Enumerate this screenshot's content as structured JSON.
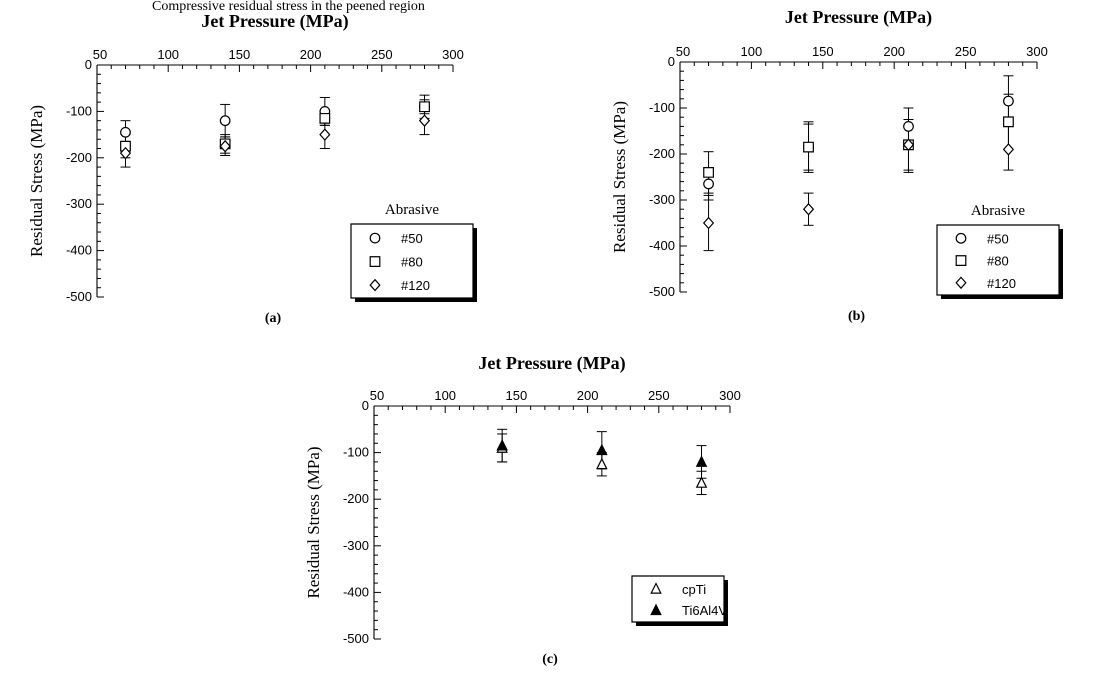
{
  "top_text": "Compressive residual stress in the peened region",
  "chart_data": [
    {
      "id": "a",
      "type": "scatter",
      "caption": "(a)",
      "xlabel": "Jet Pressure (MPa)",
      "ylabel": "Residual Stress (MPa)",
      "xlim": [
        50,
        300
      ],
      "ylim": [
        -500,
        0
      ],
      "xticks": [
        50,
        100,
        150,
        200,
        250,
        300
      ],
      "yticks": [
        0,
        -100,
        -200,
        -300,
        -400,
        -500
      ],
      "legend_title": "Abrasive",
      "legend_position": "bottom-right",
      "series": [
        {
          "name": "#50",
          "marker": "circle",
          "x": [
            70,
            140,
            210,
            280
          ],
          "y": [
            -145,
            -120,
            -100,
            -90
          ],
          "err": [
            [
              -120,
              -170
            ],
            [
              -85,
              -155
            ],
            [
              -70,
              -130
            ],
            [
              -65,
              -115
            ]
          ]
        },
        {
          "name": "#80",
          "marker": "square",
          "x": [
            70,
            140,
            210,
            280
          ],
          "y": [
            -175,
            -170,
            -115,
            -90
          ],
          "err": [
            [
              -150,
              -200
            ],
            [
              -150,
              -190
            ],
            [
              -100,
              -130
            ],
            [
              -75,
              -105
            ]
          ]
        },
        {
          "name": "#120",
          "marker": "diamond",
          "x": [
            70,
            140,
            210,
            280
          ],
          "y": [
            -190,
            -175,
            -150,
            -120
          ],
          "err": [
            [
              -165,
              -220
            ],
            [
              -155,
              -195
            ],
            [
              -120,
              -180
            ],
            [
              -90,
              -150
            ]
          ]
        }
      ]
    },
    {
      "id": "b",
      "type": "scatter",
      "caption": "(b)",
      "xlabel": "Jet Pressure (MPa)",
      "ylabel": "Residual Stress (MPa)",
      "xlim": [
        50,
        300
      ],
      "ylim": [
        -500,
        0
      ],
      "xticks": [
        50,
        100,
        150,
        200,
        250,
        300
      ],
      "yticks": [
        0,
        -100,
        -200,
        -300,
        -400,
        -500
      ],
      "legend_title": "Abrasive",
      "legend_position": "bottom-right",
      "series": [
        {
          "name": "#50",
          "marker": "circle",
          "x": [
            70,
            140,
            210,
            280
          ],
          "y": [
            -265,
            -185,
            -140,
            -85
          ],
          "err": [
            [
              -230,
              -300
            ],
            [
              -130,
              -240
            ],
            [
              -100,
              -180
            ],
            [
              -30,
              -140
            ]
          ]
        },
        {
          "name": "#80",
          "marker": "square",
          "x": [
            70,
            140,
            210,
            280
          ],
          "y": [
            -240,
            -185,
            -180,
            -130
          ],
          "err": [
            [
              -195,
              -285
            ],
            [
              -135,
              -235
            ],
            [
              -125,
              -235
            ],
            [
              -70,
              -190
            ]
          ]
        },
        {
          "name": "#120",
          "marker": "diamond",
          "x": [
            70,
            140,
            210,
            280
          ],
          "y": [
            -350,
            -320,
            -180,
            -190
          ],
          "err": [
            [
              -290,
              -410
            ],
            [
              -285,
              -355
            ],
            [
              -125,
              -240
            ],
            [
              -140,
              -235
            ]
          ]
        }
      ]
    },
    {
      "id": "c",
      "type": "scatter",
      "caption": "(c)",
      "xlabel": "Jet Pressure (MPa)",
      "ylabel": "Residual Stress (MPa)",
      "xlim": [
        50,
        300
      ],
      "ylim": [
        -500,
        0
      ],
      "xticks": [
        50,
        100,
        150,
        200,
        250,
        300
      ],
      "yticks": [
        0,
        -100,
        -200,
        -300,
        -400,
        -500
      ],
      "legend_title": "",
      "legend_position": "bottom-right",
      "series": [
        {
          "name": "cpTi",
          "marker": "triangle-open",
          "x": [
            140,
            210,
            280
          ],
          "y": [
            -90,
            -125,
            -165
          ],
          "err": [
            [
              -60,
              -120
            ],
            [
              -100,
              -150
            ],
            [
              -140,
              -190
            ]
          ]
        },
        {
          "name": "Ti6Al4V",
          "marker": "triangle-filled",
          "x": [
            140,
            210,
            280
          ],
          "y": [
            -85,
            -95,
            -120
          ],
          "err": [
            [
              -50,
              -120
            ],
            [
              -55,
              -135
            ],
            [
              -85,
              -155
            ]
          ]
        }
      ]
    }
  ]
}
